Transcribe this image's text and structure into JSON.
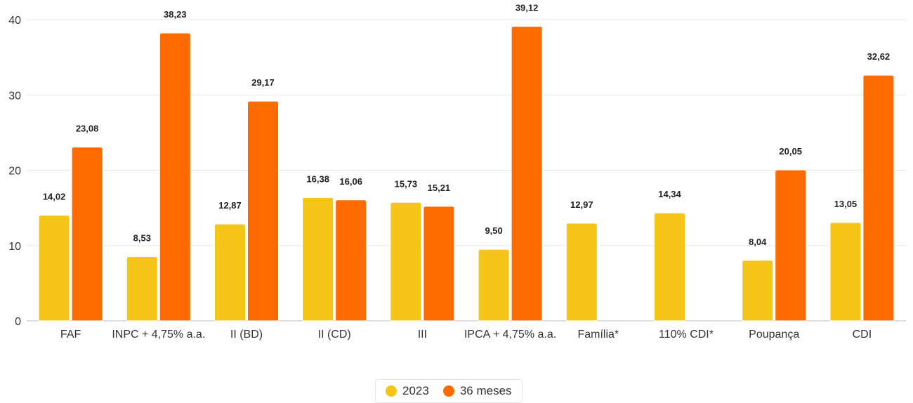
{
  "chart_data": {
    "type": "bar",
    "categories": [
      "FAF",
      "INPC + 4,75% a.a.",
      "II (BD)",
      "II (CD)",
      "III",
      "IPCA + 4,75% a.a.",
      "Família*",
      "110% CDI*",
      "Poupança",
      "CDI"
    ],
    "series": [
      {
        "name": "2023",
        "color": "#F5C518",
        "values": [
          14.02,
          8.53,
          12.87,
          16.38,
          15.73,
          9.5,
          12.97,
          14.34,
          8.04,
          13.05
        ],
        "labels": [
          "14,02",
          "8,53",
          "12,87",
          "16,38",
          "15,73",
          "9,50",
          "12,97",
          "14,34",
          "8,04",
          "13,05"
        ]
      },
      {
        "name": "36 meses",
        "color": "#FF6B00",
        "values": [
          23.08,
          38.23,
          29.17,
          16.06,
          15.21,
          39.12,
          null,
          null,
          20.05,
          32.62
        ],
        "labels": [
          "23,08",
          "38,23",
          "29,17",
          "16,06",
          "15,21",
          "39,12",
          null,
          null,
          "20,05",
          "32,62"
        ]
      }
    ],
    "ylim": [
      0,
      40
    ],
    "yticks": [
      0,
      10,
      20,
      30,
      40
    ],
    "grid": true,
    "legend_position": "bottom-center"
  }
}
